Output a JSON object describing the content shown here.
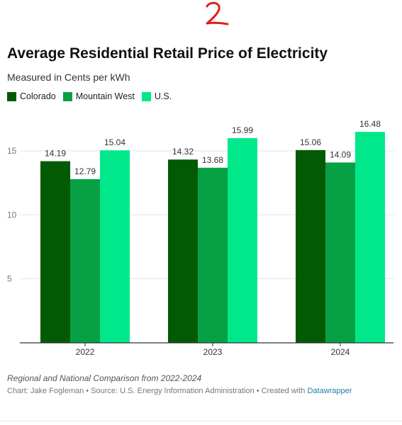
{
  "header": {
    "mark": "2",
    "title": "Average Residential Retail Price of Electricity",
    "subtitle": "Measured in Cents per kWh"
  },
  "footer": {
    "notes": "Regional and National Comparison from 2022-2024",
    "credit_chart": "Chart: Jake Fogleman",
    "credit_source": "Source: U.S. Energy Information Administration",
    "credit_created": "Created with ",
    "credit_link": "Datawrapper",
    "separator": " • "
  },
  "colors": {
    "Colorado": "#035a04",
    "Mountain West": "#08a045",
    "U.S.": "#00e88a",
    "mark": "#e0201b"
  },
  "chart_data": {
    "type": "bar",
    "title": "Average Residential Retail Price of Electricity",
    "subtitle": "Measured in Cents per kWh",
    "categories": [
      "2022",
      "2023",
      "2024"
    ],
    "series": [
      {
        "name": "Colorado",
        "values": [
          14.19,
          14.32,
          15.06
        ]
      },
      {
        "name": "Mountain West",
        "values": [
          12.79,
          13.68,
          14.09
        ]
      },
      {
        "name": "U.S.",
        "values": [
          15.04,
          15.99,
          16.48
        ]
      }
    ],
    "yticks": [
      5,
      10,
      15
    ],
    "ylim": [
      0,
      17
    ],
    "grid": true,
    "legend": "top-left",
    "data_labels": true
  }
}
